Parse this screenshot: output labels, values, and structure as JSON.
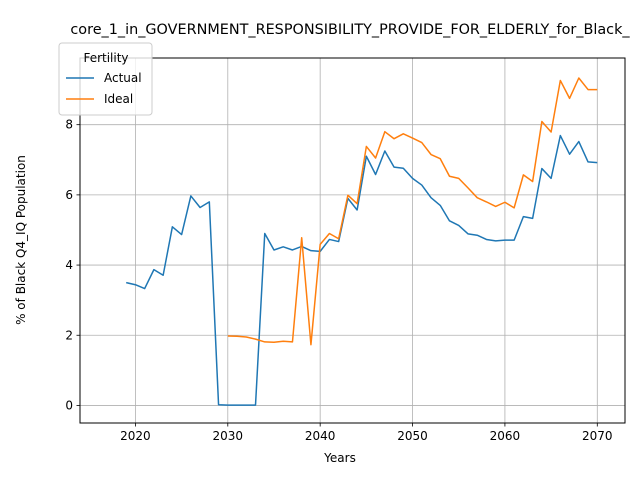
{
  "chart_data": {
    "type": "line",
    "title": "core_1_in_GOVERNMENT_RESPONSIBILITY_PROVIDE_FOR_ELDERLY_for_Black_",
    "xlabel": "Years",
    "ylabel": "% of Black Q4_IQ Population",
    "xlim": [
      2014,
      2073
    ],
    "ylim": [
      -0.5,
      9.9
    ],
    "xticks": [
      "2020",
      "2030",
      "2040",
      "2050",
      "2060",
      "2070"
    ],
    "yticks": [
      "0",
      "2",
      "4",
      "6",
      "8"
    ],
    "grid": true,
    "legend": {
      "title": "Fertility",
      "placement": "top-left"
    },
    "series": [
      {
        "name": "Actual",
        "color": "#1f77b4",
        "x": [
          2019,
          2020,
          2021,
          2022,
          2023,
          2024,
          2025,
          2026,
          2027,
          2028,
          2029,
          2030,
          2031,
          2032,
          2033,
          2034,
          2035,
          2036,
          2037,
          2038,
          2039,
          2040,
          2041,
          2042,
          2043,
          2044,
          2045,
          2046,
          2047,
          2048,
          2049,
          2050,
          2051,
          2052,
          2053,
          2054,
          2055,
          2056,
          2057,
          2058,
          2059,
          2060,
          2061,
          2062,
          2063,
          2064,
          2065,
          2066,
          2067,
          2068,
          2069,
          2070
        ],
        "y": [
          3.5,
          3.44,
          3.33,
          3.87,
          3.71,
          5.09,
          4.87,
          5.97,
          5.64,
          5.8,
          0.02,
          0.01,
          0.01,
          0.01,
          0.01,
          4.9,
          4.43,
          4.52,
          4.43,
          4.53,
          4.41,
          4.39,
          4.73,
          4.67,
          5.9,
          5.57,
          7.1,
          6.58,
          7.25,
          6.79,
          6.76,
          6.47,
          6.28,
          5.92,
          5.7,
          5.26,
          5.13,
          4.89,
          4.85,
          4.73,
          4.69,
          4.71,
          4.71,
          5.38,
          5.33,
          6.75,
          6.47,
          7.69,
          7.16,
          7.52,
          6.94,
          6.92
        ]
      },
      {
        "name": "Ideal",
        "color": "#ff7f0e",
        "x": [
          2030,
          2031,
          2032,
          2033,
          2034,
          2035,
          2036,
          2037,
          2038,
          2039,
          2040,
          2041,
          2042,
          2043,
          2044,
          2045,
          2046,
          2047,
          2048,
          2049,
          2050,
          2051,
          2052,
          2053,
          2054,
          2055,
          2056,
          2057,
          2058,
          2059,
          2060,
          2061,
          2062,
          2063,
          2064,
          2065,
          2066,
          2067,
          2068,
          2069,
          2070
        ],
        "y": [
          1.98,
          1.97,
          1.95,
          1.89,
          1.81,
          1.8,
          1.83,
          1.81,
          4.78,
          1.73,
          4.59,
          4.9,
          4.75,
          5.99,
          5.75,
          7.38,
          7.05,
          7.8,
          7.6,
          7.74,
          7.62,
          7.49,
          7.15,
          7.03,
          6.53,
          6.47,
          6.2,
          5.92,
          5.8,
          5.67,
          5.79,
          5.63,
          6.57,
          6.38,
          8.09,
          7.79,
          9.26,
          8.75,
          9.33,
          9.0,
          9.0
        ]
      }
    ]
  }
}
